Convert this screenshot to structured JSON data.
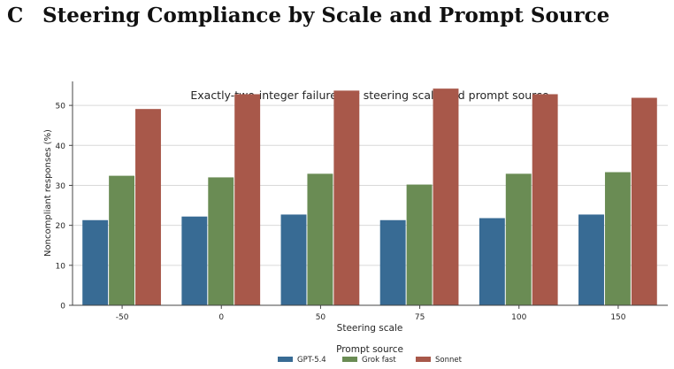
{
  "section": {
    "letter": "C",
    "title": "Steering Compliance by Scale and Prompt Source"
  },
  "colors": {
    "GPT-5.4": "#386b94",
    "Grok fast": "#6a8c54",
    "Sonnet": "#a8584a",
    "grid": "#d9d9d9",
    "axis": "#444444",
    "text": "#262626"
  },
  "chart_data": {
    "type": "bar",
    "title": "Exactly-two-integer failures by steering scale and prompt source",
    "xlabel": "Steering scale",
    "ylabel": "Noncompliant responses (%)",
    "categories": [
      "-50",
      "0",
      "50",
      "75",
      "100",
      "150"
    ],
    "ylim": [
      0,
      56
    ],
    "yticks": [
      0,
      10,
      20,
      30,
      40,
      50
    ],
    "grid": "horizontal",
    "legend": {
      "title": "Prompt source",
      "placement": "bottom-center"
    },
    "series": [
      {
        "name": "GPT-5.4",
        "values": [
          21.3,
          22.2,
          22.7,
          21.3,
          21.8,
          22.7
        ]
      },
      {
        "name": "Grok fast",
        "values": [
          32.4,
          32.0,
          32.9,
          30.2,
          32.9,
          33.3
        ]
      },
      {
        "name": "Sonnet",
        "values": [
          49.1,
          52.8,
          53.7,
          54.2,
          52.8,
          51.9
        ]
      }
    ]
  }
}
